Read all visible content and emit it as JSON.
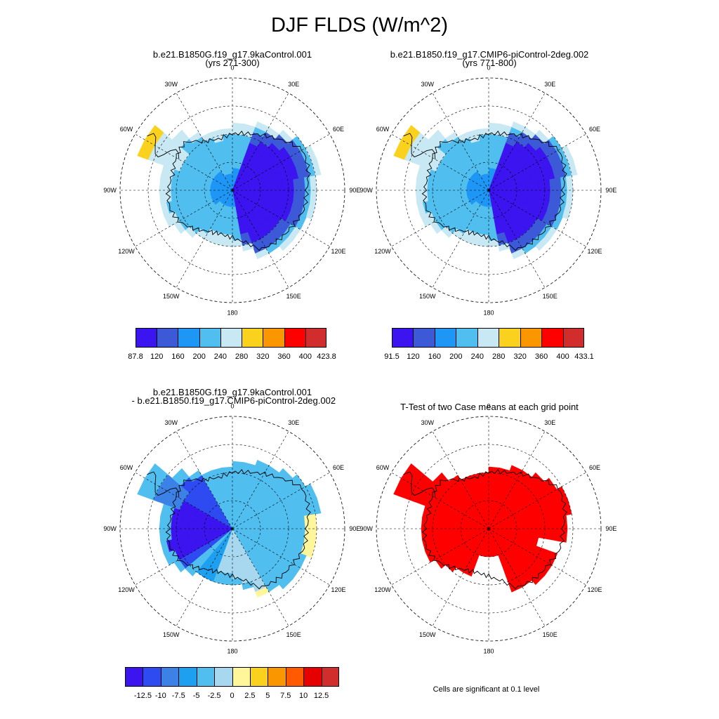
{
  "title": "DJF FLDS (W/m^2)",
  "panels": [
    {
      "title_line1": "b.e21.B1850G.f19_g17.9kaControl.001",
      "title_line2": "(yrs 271-300)"
    },
    {
      "title_line1": "b.e21.B1850.f19_g17.CMIP6-piControl-2deg.002",
      "title_line2": "(yrs 771-800)"
    },
    {
      "title_line1": "b.e21.B1850G.f19_g17.9kaControl.001",
      "title_line2": " - b.e21.B1850.f19_g17.CMIP6-piControl-2deg.002"
    },
    {
      "title_line1": "T-Test of two Case means at each grid point",
      "title_line2": ""
    }
  ],
  "lon_labels": [
    "0",
    "30E",
    "60E",
    "90E",
    "120E",
    "150E",
    "180",
    "150W",
    "120W",
    "90W",
    "60W",
    "30W"
  ],
  "colorbars": {
    "top_left": {
      "colors": [
        "#3c14f0",
        "#3c5ad8",
        "#1e96f5",
        "#50beee",
        "#c8e8f4",
        "#fad21e",
        "#fa9600",
        "#ff0000",
        "#d22d2d"
      ],
      "labels": [
        "87.8",
        "120",
        "160",
        "200",
        "240",
        "280",
        "320",
        "360",
        "400",
        "423.8"
      ]
    },
    "top_right": {
      "colors": [
        "#3c14f0",
        "#3c5ad8",
        "#1e96f5",
        "#50beee",
        "#c8e8f4",
        "#fad21e",
        "#fa9600",
        "#ff0000",
        "#d22d2d"
      ],
      "labels": [
        "91.5",
        "120",
        "160",
        "200",
        "240",
        "280",
        "320",
        "360",
        "400",
        "433.1"
      ]
    },
    "bottom_left": {
      "colors": [
        "#3c14f0",
        "#2d4bf0",
        "#3c82e6",
        "#1ea0f0",
        "#50beee",
        "#a8d8f0",
        "#fff59a",
        "#fad21e",
        "#fa9600",
        "#ff5a00",
        "#e60000",
        "#d22d2d"
      ],
      "labels": [
        "-12.5",
        "-10",
        "-7.5",
        "-5",
        "-2.5",
        "0",
        "2.5",
        "5",
        "7.5",
        "10",
        "12.5"
      ]
    }
  },
  "significance_note": "Cells are significant at 0.1 level",
  "colors": {
    "significant": "#ff0000"
  }
}
